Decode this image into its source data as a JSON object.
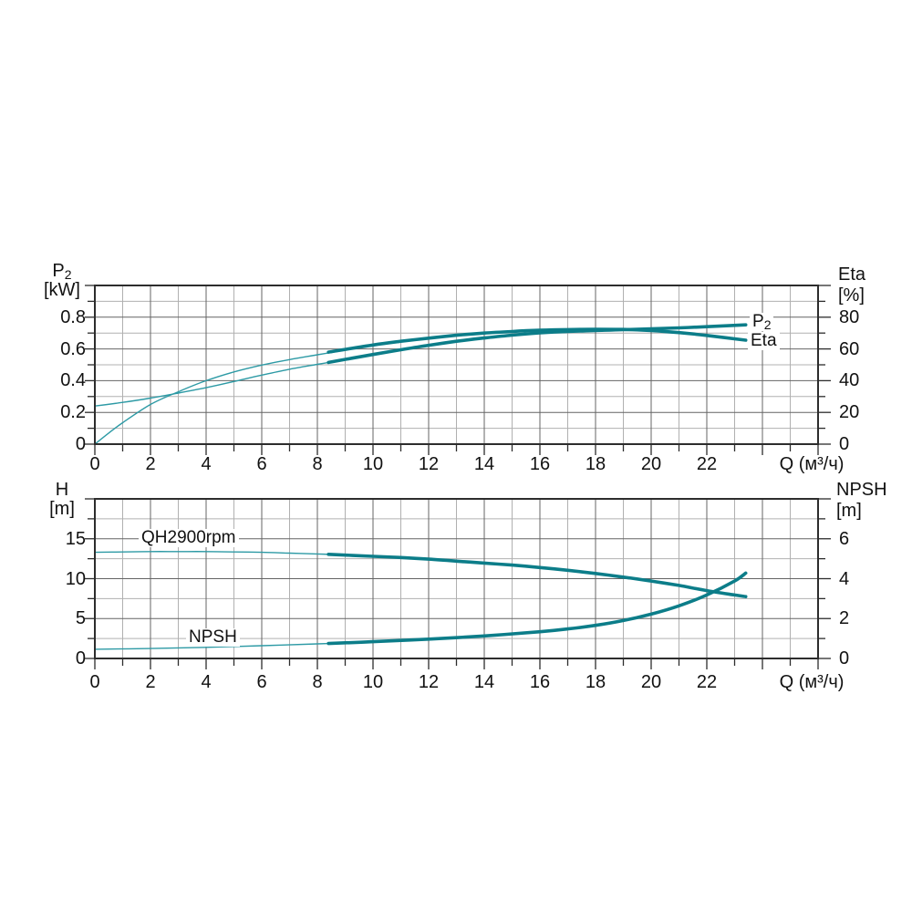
{
  "page": {
    "background": "#ffffff"
  },
  "colors": {
    "curve_thick": "#0c7d89",
    "curve_thin": "#2d9aa5",
    "grid_major": "#646464",
    "grid_minor": "#b0b0b0",
    "frame": "#2d2d2d",
    "text": "#111111"
  },
  "labels": {
    "top_left_title": "P",
    "top_left_title_sub": "2",
    "top_left_unit": "[kW]",
    "top_right_title": "Eta",
    "top_right_unit": "[%]",
    "curve_p2_main": "P",
    "curve_p2_sub": "2",
    "curve_eta": "Eta",
    "bottom_left_title": "H",
    "bottom_left_unit": "[m]",
    "bottom_right_title": "NPSH",
    "bottom_right_unit": "[m]",
    "curve_qh": "QH2900rpm",
    "curve_npsh": "NPSH"
  },
  "chart_data": [
    {
      "type": "line",
      "title": "Pump power and efficiency curves",
      "xlabel": "Q (м³/ч)",
      "grid": true,
      "x_axis": {
        "min": 0,
        "max": 26,
        "major_step": 2,
        "minor_step": 1,
        "labeled_ticks": [
          0,
          2,
          4,
          6,
          8,
          10,
          12,
          14,
          16,
          18,
          20,
          22
        ]
      },
      "left_axis": {
        "title": "P2",
        "unit": "kW",
        "min": 0,
        "max": 1.0,
        "major_step": 0.2,
        "minor_step": 0.1,
        "labeled_ticks": [
          0.8,
          0.6,
          0.4,
          0.2,
          0
        ]
      },
      "right_axis": {
        "title": "Eta",
        "unit": "%",
        "min": 0,
        "max": 100,
        "major_step": 20,
        "minor_step": 10,
        "labeled_ticks": [
          80,
          60,
          40,
          20,
          0
        ]
      },
      "series": [
        {
          "name": "p2-thin",
          "label": "P2",
          "axis": "left",
          "weight": "thin",
          "points": [
            [
              0,
              0.24
            ],
            [
              1,
              0.263
            ],
            [
              2,
              0.29
            ],
            [
              3,
              0.322
            ],
            [
              4,
              0.356
            ],
            [
              5,
              0.395
            ],
            [
              6,
              0.435
            ],
            [
              7,
              0.472
            ],
            [
              8,
              0.503
            ],
            [
              8.8,
              0.527
            ]
          ]
        },
        {
          "name": "eta-thin",
          "label": "Eta",
          "axis": "right",
          "weight": "thin",
          "points": [
            [
              0,
              0
            ],
            [
              0.5,
              7
            ],
            [
              1,
              13.5
            ],
            [
              2,
              25
            ],
            [
              3,
              33
            ],
            [
              4,
              40
            ],
            [
              5,
              45.5
            ],
            [
              6,
              49.8
            ],
            [
              7,
              53.3
            ],
            [
              8,
              56.3
            ],
            [
              8.8,
              58.7
            ]
          ]
        },
        {
          "name": "p2-thick",
          "label": "P2",
          "axis": "left",
          "weight": "thick",
          "points": [
            [
              8.4,
              0.515
            ],
            [
              10,
              0.565
            ],
            [
              11,
              0.595
            ],
            [
              12,
              0.623
            ],
            [
              13,
              0.648
            ],
            [
              14,
              0.669
            ],
            [
              15,
              0.687
            ],
            [
              16,
              0.701
            ],
            [
              17,
              0.71
            ],
            [
              18,
              0.716
            ],
            [
              19,
              0.721
            ],
            [
              20,
              0.727
            ],
            [
              21,
              0.733
            ],
            [
              22,
              0.74
            ],
            [
              23.4,
              0.752
            ]
          ]
        },
        {
          "name": "eta-thick",
          "label": "Eta",
          "axis": "right",
          "weight": "thick",
          "points": [
            [
              8.4,
              58
            ],
            [
              10,
              62.5
            ],
            [
              11,
              64.8
            ],
            [
              12,
              66.8
            ],
            [
              13,
              68.6
            ],
            [
              14,
              70
            ],
            [
              15,
              71
            ],
            [
              16,
              71.8
            ],
            [
              17,
              72.2
            ],
            [
              18,
              72.4
            ],
            [
              19,
              72.3
            ],
            [
              20,
              71.6
            ],
            [
              21,
              70.3
            ],
            [
              22,
              68.5
            ],
            [
              23.4,
              65.5
            ]
          ]
        }
      ]
    },
    {
      "type": "line",
      "title": "Pump head and NPSH curves",
      "xlabel": "Q (м³/ч)",
      "grid": true,
      "x_axis": {
        "min": 0,
        "max": 26,
        "major_step": 2,
        "minor_step": 1,
        "labeled_ticks": [
          0,
          2,
          4,
          6,
          8,
          10,
          12,
          14,
          16,
          18,
          20,
          22
        ]
      },
      "left_axis": {
        "title": "H",
        "unit": "m",
        "min": 0,
        "max": 20,
        "major_step": 5,
        "minor_step": 2.5,
        "labeled_ticks": [
          15,
          10,
          5,
          0
        ]
      },
      "right_axis": {
        "title": "NPSH",
        "unit": "m",
        "min": 0,
        "max": 8,
        "major_step": 2,
        "minor_step": 1,
        "labeled_ticks": [
          6,
          4,
          2,
          0
        ]
      },
      "series": [
        {
          "name": "qh-thin",
          "label": "QH2900rpm",
          "axis": "left",
          "weight": "thin",
          "points": [
            [
              0,
              13.3
            ],
            [
              1,
              13.35
            ],
            [
              2,
              13.4
            ],
            [
              3,
              13.4
            ],
            [
              4,
              13.4
            ],
            [
              5,
              13.35
            ],
            [
              6,
              13.3
            ],
            [
              7,
              13.2
            ],
            [
              8,
              13.1
            ],
            [
              8.8,
              13.0
            ]
          ]
        },
        {
          "name": "npsh-thin",
          "label": "NPSH",
          "axis": "right",
          "weight": "thin",
          "points": [
            [
              0,
              0.46
            ],
            [
              2,
              0.5
            ],
            [
              4,
              0.56
            ],
            [
              6,
              0.64
            ],
            [
              8,
              0.73
            ],
            [
              8.8,
              0.77
            ]
          ]
        },
        {
          "name": "qh-thick",
          "label": "QH2900rpm",
          "axis": "left",
          "weight": "thick",
          "points": [
            [
              8.4,
              13.05
            ],
            [
              10,
              12.8
            ],
            [
              11,
              12.65
            ],
            [
              12,
              12.45
            ],
            [
              13,
              12.2
            ],
            [
              14,
              11.95
            ],
            [
              15,
              11.7
            ],
            [
              16,
              11.4
            ],
            [
              17,
              11.05
            ],
            [
              18,
              10.65
            ],
            [
              19,
              10.2
            ],
            [
              20,
              9.7
            ],
            [
              21,
              9.15
            ],
            [
              22,
              8.5
            ],
            [
              23,
              7.95
            ],
            [
              23.4,
              7.75
            ]
          ]
        },
        {
          "name": "npsh-thick",
          "label": "NPSH",
          "axis": "right",
          "weight": "thick",
          "points": [
            [
              8.4,
              0.75
            ],
            [
              10,
              0.84
            ],
            [
              12,
              0.97
            ],
            [
              14,
              1.13
            ],
            [
              16,
              1.34
            ],
            [
              17,
              1.48
            ],
            [
              18,
              1.66
            ],
            [
              19,
              1.9
            ],
            [
              20,
              2.22
            ],
            [
              21,
              2.64
            ],
            [
              22,
              3.18
            ],
            [
              23,
              3.88
            ],
            [
              23.4,
              4.28
            ]
          ]
        }
      ]
    }
  ]
}
